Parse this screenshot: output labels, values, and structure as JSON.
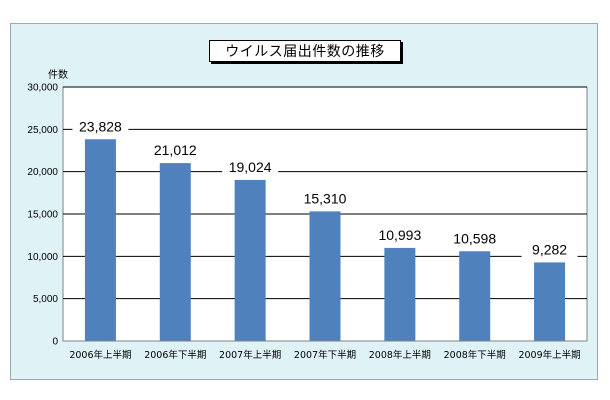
{
  "chart_data": {
    "type": "bar",
    "title": "ウイルス届出件数の推移",
    "ylabel": "件数",
    "xlabel": "",
    "categories": [
      "2006年上半期",
      "2006年下半期",
      "2007年上半期",
      "2007年下半期",
      "2008年上半期",
      "2008年下半期",
      "2009年上半期"
    ],
    "values": [
      23828,
      21012,
      19024,
      15310,
      10993,
      10598,
      9282
    ],
    "value_labels": [
      "23,828",
      "21,012",
      "19,024",
      "15,310",
      "10,993",
      "10,598",
      "9,282"
    ],
    "ylim": [
      0,
      30000
    ],
    "yticks": [
      0,
      5000,
      10000,
      15000,
      20000,
      25000,
      30000
    ],
    "ytick_labels": [
      "0",
      "5,000",
      "10,000",
      "15,000",
      "20,000",
      "25,000",
      "30,000"
    ],
    "grid": true,
    "legend": "none",
    "colors": {
      "bar": "#4f81bd",
      "plot_background": "#ffffff",
      "frame_background": "#dff3f7",
      "grid": "#000000"
    }
  }
}
